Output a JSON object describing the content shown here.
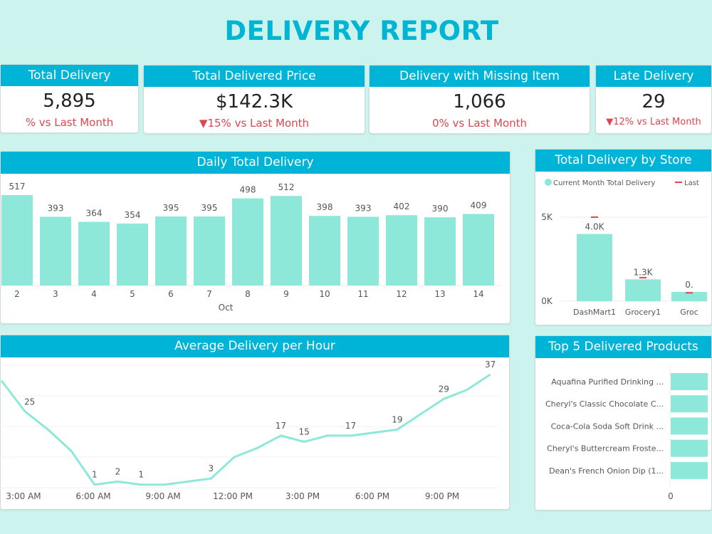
{
  "title": "DELIVERY REPORT",
  "colors": {
    "header": "#00b4d8",
    "bar": "#8de8d9",
    "negative": "#e0444f",
    "positive": "#3aa76d",
    "background": "#cdf3ee"
  },
  "kpis": [
    {
      "title": "Total Delivery",
      "value": "5,895",
      "delta": "% vs Last Month",
      "arrow": ""
    },
    {
      "title": "Total Delivered Price",
      "value": "$142.3K",
      "delta": "15% vs Last Month",
      "arrow": "▼"
    },
    {
      "title": "Delivery with Missing Item",
      "value": "1,066",
      "delta": "0% vs Last Month",
      "arrow": ""
    },
    {
      "title": "Late Delivery",
      "value": "29",
      "delta": "12% vs Last Month",
      "arrow": "▼"
    }
  ],
  "panels": {
    "daily": "Daily Total Delivery",
    "store": "Total Delivery by Store",
    "hourly": "Average Delivery per Hour",
    "top5": "Top 5 Delivered Products"
  },
  "chart_data": [
    {
      "type": "bar",
      "title": "Daily Total Delivery",
      "xlabel": "Oct",
      "categories": [
        "2",
        "3",
        "4",
        "5",
        "6",
        "7",
        "8",
        "9",
        "10",
        "11",
        "12",
        "13",
        "14"
      ],
      "values": [
        517,
        393,
        364,
        354,
        395,
        395,
        498,
        512,
        398,
        393,
        402,
        390,
        409
      ],
      "data_labels": true
    },
    {
      "type": "bar",
      "title": "Total Delivery by Store",
      "legend": [
        "Current Month Total Delivery",
        "Last"
      ],
      "legend_position": "top",
      "categories": [
        "DashMart1",
        "Grocery1",
        "Groc"
      ],
      "series": [
        {
          "name": "Current Month Total Delivery",
          "values": [
            4000,
            1300,
            550
          ],
          "labels": [
            "4.0K",
            "1.3K",
            "0."
          ]
        },
        {
          "name": "Last",
          "values": [
            5000,
            1400,
            500
          ]
        }
      ],
      "yticks": [
        "0K",
        "5K"
      ],
      "ylim": [
        0,
        5000
      ]
    },
    {
      "type": "line",
      "title": "Average Delivery per Hour",
      "x": [
        "2 AM",
        "3 AM",
        "4 AM",
        "5 AM",
        "6 AM",
        "7 AM",
        "8 AM",
        "9 AM",
        "10 AM",
        "11 AM",
        "12 PM",
        "1 PM",
        "2 PM",
        "3 PM",
        "4 PM",
        "5 PM",
        "6 PM",
        "7 PM",
        "8 PM",
        "9 PM",
        "10 PM",
        "11 PM"
      ],
      "values": [
        35,
        25,
        19,
        12,
        1,
        2,
        1,
        1,
        2,
        3,
        10,
        13,
        17,
        15,
        17,
        17,
        18,
        19,
        24,
        29,
        32,
        37
      ],
      "labeled": {
        "3 AM": "25",
        "6 AM": "1",
        "7 AM": "2",
        "8 AM": "1",
        "11 AM": "3",
        "2 PM": "17",
        "3 PM": "15",
        "5 PM": "17",
        "7 PM": "19",
        "9 PM": "29",
        "11 PM": "37"
      },
      "xticks": [
        "3:00 AM",
        "6:00 AM",
        "9:00 AM",
        "12:00 PM",
        "3:00 PM",
        "6:00 PM",
        "9:00 PM"
      ],
      "ylim": [
        0,
        40
      ],
      "grid": true
    },
    {
      "type": "bar",
      "orientation": "horizontal",
      "title": "Top 5 Delivered Products",
      "categories": [
        "Aquafina Purified Drinking ...",
        "Cheryl's Classic Chocolate C...",
        "Coca-Cola Soda Soft Drink ...",
        "Cheryl's Buttercream Froste...",
        "Dean's French Onion Dip (1..."
      ],
      "xticks": [
        "0"
      ]
    }
  ]
}
